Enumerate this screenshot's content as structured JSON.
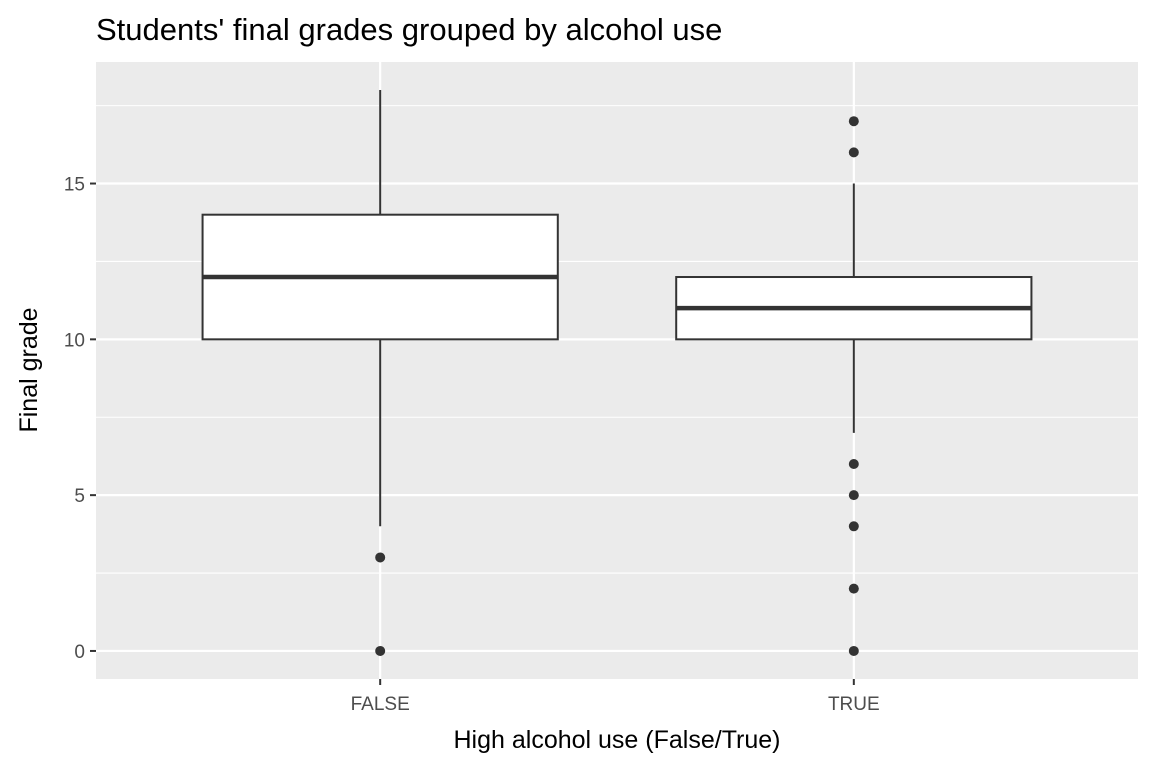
{
  "chart_data": {
    "type": "boxplot",
    "title": "Students' final grades grouped by alcohol use",
    "xlabel": "High alcohol use (False/True)",
    "ylabel": "Final grade",
    "categories": [
      "FALSE",
      "TRUE"
    ],
    "boxes": [
      {
        "category": "FALSE",
        "whisker_low": 4,
        "q1": 10,
        "median": 12,
        "q3": 14,
        "whisker_high": 18,
        "outliers": [
          3,
          0
        ]
      },
      {
        "category": "TRUE",
        "whisker_low": 7,
        "q1": 10,
        "median": 11,
        "q3": 12,
        "whisker_high": 15,
        "outliers": [
          17,
          16,
          6,
          5,
          4,
          2,
          0
        ]
      }
    ],
    "y_ticks": [
      0,
      5,
      10,
      15
    ],
    "ylim": [
      -0.9,
      18.9
    ],
    "grid": true,
    "colors": {
      "panel": "#ebebeb",
      "grid": "#ffffff",
      "box_fill": "#ffffff",
      "line": "#333333",
      "tick_text": "#4d4d4d"
    }
  }
}
